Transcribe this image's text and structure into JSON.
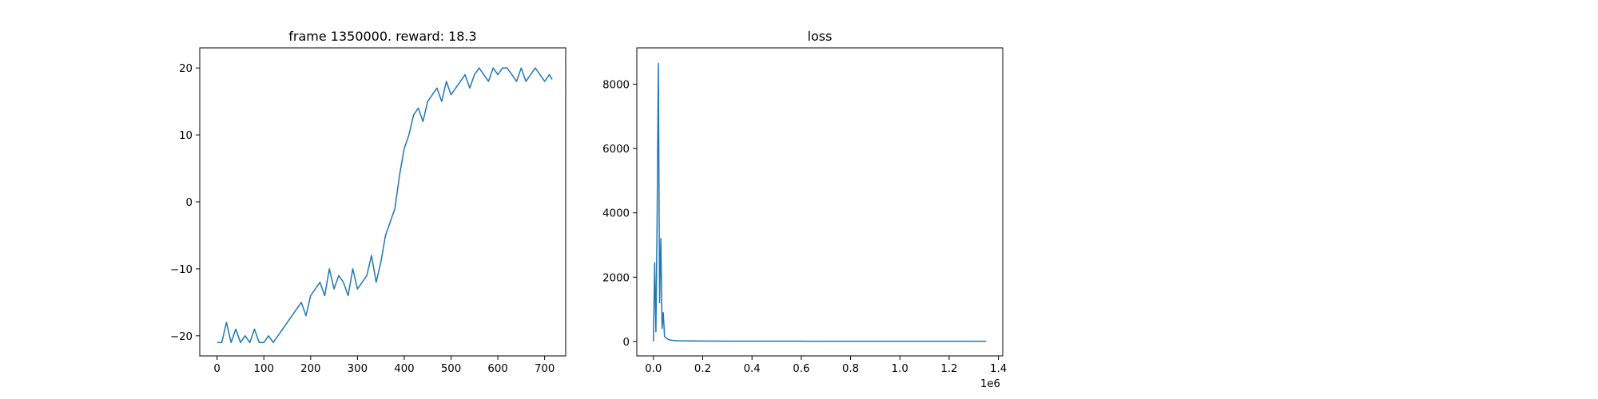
{
  "chart_data": [
    {
      "type": "line",
      "title": "frame 1350000. reward: 18.3",
      "xlabel": "",
      "ylabel": "",
      "xlim": [
        -37,
        745
      ],
      "ylim": [
        -23,
        23
      ],
      "xticks": [
        0,
        100,
        200,
        300,
        400,
        500,
        600,
        700
      ],
      "xtick_labels": [
        "0",
        "100",
        "200",
        "300",
        "400",
        "500",
        "600",
        "700"
      ],
      "yticks": [
        -20,
        -10,
        0,
        10,
        20
      ],
      "ytick_labels": [
        "−20",
        "−10",
        "0",
        "10",
        "20"
      ],
      "grid": false,
      "color": "#1f77b4",
      "series": [
        {
          "x": [
            0,
            10,
            20,
            30,
            40,
            50,
            60,
            70,
            80,
            90,
            100,
            110,
            120,
            130,
            140,
            150,
            160,
            170,
            180,
            190,
            200,
            210,
            220,
            230,
            240,
            250,
            260,
            270,
            280,
            290,
            300,
            310,
            320,
            330,
            340,
            350,
            360,
            370,
            380,
            390,
            400,
            410,
            420,
            430,
            440,
            450,
            460,
            470,
            480,
            490,
            500,
            510,
            520,
            530,
            540,
            550,
            560,
            570,
            580,
            590,
            600,
            610,
            620,
            630,
            640,
            650,
            660,
            670,
            680,
            690,
            700,
            710,
            716
          ],
          "y": [
            -21,
            -21,
            -18,
            -21,
            -19,
            -21,
            -20,
            -21,
            -19,
            -21,
            -21,
            -20,
            -21,
            -20,
            -19,
            -18,
            -17,
            -16,
            -15,
            -17,
            -14,
            -13,
            -12,
            -14,
            -10,
            -13,
            -11,
            -12,
            -14,
            -10,
            -13,
            -12,
            -11,
            -8,
            -12,
            -9,
            -5,
            -3,
            -1,
            4,
            8,
            10,
            13,
            14,
            12,
            15,
            16,
            17,
            15,
            18,
            16,
            17,
            18,
            19,
            17,
            19,
            20,
            19,
            18,
            20,
            19,
            20,
            20,
            19,
            18,
            20,
            18,
            19,
            20,
            19,
            18,
            19,
            18.3
          ]
        }
      ]
    },
    {
      "type": "line",
      "title": "loss",
      "xlabel": "",
      "ylabel": "",
      "xlim": [
        -67500,
        1417500
      ],
      "ylim": [
        -450,
        9130
      ],
      "xticks": [
        0,
        200000,
        400000,
        600000,
        800000,
        1000000,
        1200000,
        1400000
      ],
      "xtick_labels": [
        "0.0",
        "0.2",
        "0.4",
        "0.6",
        "0.8",
        "1.0",
        "1.2",
        "1.4"
      ],
      "x_offset_label": "1e6",
      "yticks": [
        0,
        2000,
        4000,
        6000,
        8000
      ],
      "ytick_labels": [
        "0",
        "2000",
        "4000",
        "6000",
        "8000"
      ],
      "grid": false,
      "color": "#1f77b4",
      "series": [
        {
          "x": [
            0,
            5000,
            10000,
            15000,
            20000,
            25000,
            30000,
            35000,
            40000,
            45000,
            50000,
            60000,
            70000,
            80000,
            100000,
            150000,
            200000,
            300000,
            400000,
            500000,
            600000,
            700000,
            800000,
            900000,
            1000000,
            1100000,
            1200000,
            1300000,
            1350000
          ],
          "y": [
            0,
            2450,
            300,
            3850,
            8650,
            1200,
            3200,
            400,
            900,
            150,
            120,
            60,
            40,
            30,
            20,
            15,
            12,
            10,
            10,
            8,
            8,
            7,
            7,
            6,
            6,
            6,
            5,
            5,
            5
          ]
        }
      ]
    }
  ]
}
